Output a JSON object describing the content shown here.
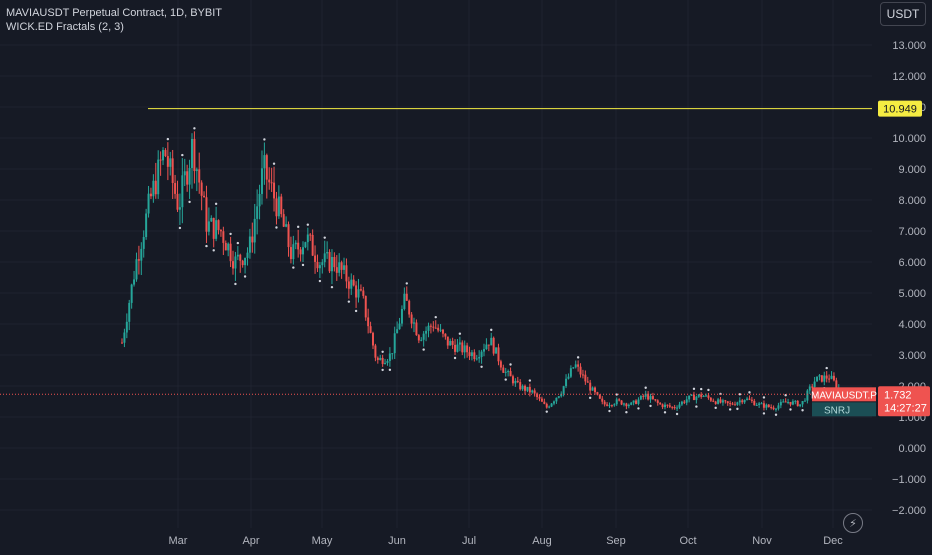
{
  "header": {
    "symbol_line": "MAVIAUSDT Perpetual Contract, 1D, BYBIT",
    "indicator_line": "WICK.ED Fractals (2, 3)"
  },
  "currency_button": "USDT",
  "flash_icon": "lightning-icon",
  "colors": {
    "background": "#161a25",
    "grid": "#1f2330",
    "up": "#26a69a",
    "down": "#ef5350",
    "highlight_line": "#f5ec42",
    "axis_text": "#b2b5be"
  },
  "price_axis": {
    "ticks": [
      "13.000",
      "12.000",
      "11.000",
      "10.000",
      "9.000",
      "8.000",
      "7.000",
      "6.000",
      "5.000",
      "4.000",
      "3.000",
      "2.000",
      "1.000",
      "0.000",
      "−1.000",
      "−2.000"
    ]
  },
  "time_axis": {
    "ticks": [
      "Mar",
      "Apr",
      "May",
      "Jun",
      "Jul",
      "Aug",
      "Sep",
      "Oct",
      "Nov",
      "Dec"
    ]
  },
  "horizontal_line": {
    "label": "10.949",
    "value": 10.949
  },
  "current_price": {
    "symbol_label": "MAVIAUSDT.P",
    "price": "1.732",
    "countdown": "14:27:27",
    "value": 1.732
  },
  "indicator_badge": "SNRJ",
  "chart_data": {
    "type": "candlestick",
    "title": "MAVIAUSDT Perpetual Contract, 1D, BYBIT",
    "ylim": [
      -2.5,
      13.5
    ],
    "series_approx_closes": [
      {
        "date": "Feb",
        "value": 3.4
      },
      {
        "date": "Feb",
        "value": 6.0
      },
      {
        "date": "Feb",
        "value": 8.0
      },
      {
        "date": "Feb",
        "value": 9.6
      },
      {
        "date": "Feb",
        "value": 7.8
      },
      {
        "date": "Feb",
        "value": 9.8
      },
      {
        "date": "Feb",
        "value": 7.2
      },
      {
        "date": "Mar",
        "value": 7.0
      },
      {
        "date": "Mar",
        "value": 6.0
      },
      {
        "date": "Mar",
        "value": 6.4
      },
      {
        "date": "Mar",
        "value": 9.0
      },
      {
        "date": "Mar",
        "value": 7.8
      },
      {
        "date": "Mar",
        "value": 6.2
      },
      {
        "date": "Mar",
        "value": 6.8
      },
      {
        "date": "Mar",
        "value": 6.0
      },
      {
        "date": "Apr",
        "value": 6.0
      },
      {
        "date": "Apr",
        "value": 5.4
      },
      {
        "date": "Apr",
        "value": 4.8
      },
      {
        "date": "Apr",
        "value": 2.8
      },
      {
        "date": "Apr",
        "value": 3.0
      },
      {
        "date": "Apr",
        "value": 4.8
      },
      {
        "date": "May",
        "value": 3.6
      },
      {
        "date": "May",
        "value": 4.0
      },
      {
        "date": "May",
        "value": 3.4
      },
      {
        "date": "May",
        "value": 3.2
      },
      {
        "date": "May",
        "value": 3.0
      },
      {
        "date": "Jun",
        "value": 3.5
      },
      {
        "date": "Jun",
        "value": 2.5
      },
      {
        "date": "Jun",
        "value": 2.0
      },
      {
        "date": "Jun",
        "value": 1.8
      },
      {
        "date": "Jul",
        "value": 1.3
      },
      {
        "date": "Jul",
        "value": 1.8
      },
      {
        "date": "Jul",
        "value": 2.7
      },
      {
        "date": "Jul",
        "value": 2.0
      },
      {
        "date": "Aug",
        "value": 1.4
      },
      {
        "date": "Aug",
        "value": 1.5
      },
      {
        "date": "Aug",
        "value": 1.4
      },
      {
        "date": "Aug",
        "value": 1.7
      },
      {
        "date": "Sep",
        "value": 1.4
      },
      {
        "date": "Sep",
        "value": 1.3
      },
      {
        "date": "Sep",
        "value": 1.6
      },
      {
        "date": "Sep",
        "value": 1.7
      },
      {
        "date": "Oct",
        "value": 1.5
      },
      {
        "date": "Oct",
        "value": 1.4
      },
      {
        "date": "Oct",
        "value": 1.6
      },
      {
        "date": "Oct",
        "value": 1.4
      },
      {
        "date": "Nov",
        "value": 1.3
      },
      {
        "date": "Nov",
        "value": 1.5
      },
      {
        "date": "Nov",
        "value": 1.4
      },
      {
        "date": "Nov",
        "value": 2.2
      },
      {
        "date": "Dec",
        "value": 2.3
      },
      {
        "date": "Dec",
        "value": 1.732
      }
    ]
  }
}
